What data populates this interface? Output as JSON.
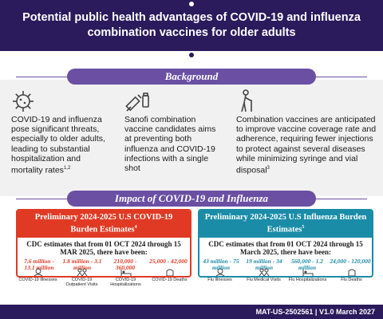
{
  "header": {
    "title": "Potential public health advantages of COVID-19 and influenza combination vaccines for older adults"
  },
  "background": {
    "label": "Background",
    "cols": [
      {
        "icon": "virus-icon",
        "text": "COVID-19 and influenza pose significant threats, especially to older adults, leading to substantial hospitalization and mortality rates",
        "ref": "1,2"
      },
      {
        "icon": "syringe-vial-icon",
        "text": "Sanofi combination vaccine candidates aims at preventing both influenza and COVID-19 infections with a single shot",
        "ref": ""
      },
      {
        "icon": "elderly-person-icon",
        "text": "Combination vaccines are anticipated to improve vaccine coverage rate and adherence, requiring fewer injections to protect against several diseases while minimizing syringe and vial disposal",
        "ref": "3"
      }
    ]
  },
  "impact": {
    "label": "Impact of COVID-19 and Influenza"
  },
  "covid": {
    "title": "Preliminary 2024-2025 U.S COVID-19 Burden Estimates",
    "ref": "4",
    "subtitle": "CDC estimates that from 01 OCT 2024 through 15 MAR 2025, there have been:",
    "stats": [
      {
        "value": "7.6 million - 13.1 million",
        "label": "COVID-19 Illnesses"
      },
      {
        "value": "1.8 million - 3.1 million",
        "label": "COVID-19 Outpatient Visits"
      },
      {
        "value": "210,000 - 360,000",
        "label": "COVID-19 Hospitalizations"
      },
      {
        "value": "25,000 - 42,000",
        "label": "COVID-19 Deaths"
      }
    ]
  },
  "flu": {
    "title": "Preliminary 2024-2025 U.S Influenza Burden Estimates",
    "ref": "5",
    "subtitle": "CDC estimates that from 01 OCT 2024 through 15 March 2025, there have been:",
    "stats": [
      {
        "value": "43 million - 75 million",
        "label": "Flu Illnesses"
      },
      {
        "value": "19 million - 34 million",
        "label": "Flu Medical Visits"
      },
      {
        "value": "560,000 - 1.2 million",
        "label": "Flu Hospitalizations"
      },
      {
        "value": "24,000 - 120,000",
        "label": "Flu Deaths"
      }
    ]
  },
  "footer": {
    "text": "MAT-US-2502561 | V1.0 March 2027"
  },
  "colors": {
    "navy": "#2b1a5c",
    "purple": "#6a4fa3",
    "red": "#e03a24",
    "teal": "#1a8ca8"
  }
}
